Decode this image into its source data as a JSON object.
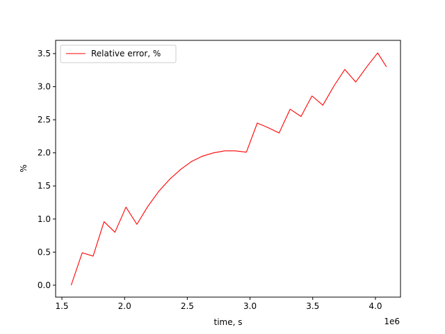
{
  "chart_data": {
    "type": "line",
    "xlabel": "time, s",
    "ylabel": "%",
    "x_offset_label": "1e6",
    "xlim": [
      1.45,
      4.2
    ],
    "ylim": [
      -0.18,
      3.7
    ],
    "xticks": [
      1.5,
      2.0,
      2.5,
      3.0,
      3.5,
      4.0
    ],
    "xtick_labels": [
      "1.5",
      "2.0",
      "2.5",
      "3.0",
      "3.5",
      "4.0"
    ],
    "yticks": [
      0.0,
      0.5,
      1.0,
      1.5,
      2.0,
      2.5,
      3.0,
      3.5
    ],
    "ytick_labels": [
      "0.0",
      "0.5",
      "1.0",
      "1.5",
      "2.0",
      "2.5",
      "3.0",
      "3.5"
    ],
    "grid": false,
    "legend_position": "top-left",
    "series": [
      {
        "name": "Relative error, %",
        "color": "#ff0000",
        "x": [
          1.574,
          1.662,
          1.749,
          1.836,
          1.923,
          2.011,
          2.098,
          2.185,
          2.273,
          2.359,
          2.447,
          2.534,
          2.621,
          2.709,
          2.796,
          2.883,
          2.971,
          3.058,
          3.145,
          3.232,
          3.32,
          3.407,
          3.494,
          3.581,
          3.669,
          3.756,
          3.843,
          3.931,
          4.018,
          4.088
        ],
        "y": [
          0.0,
          0.49,
          0.44,
          0.96,
          0.8,
          1.18,
          0.92,
          1.19,
          1.42,
          1.6,
          1.75,
          1.87,
          1.95,
          2.0,
          2.03,
          2.03,
          2.01,
          2.45,
          2.38,
          2.3,
          2.66,
          2.55,
          2.86,
          2.72,
          3.01,
          3.26,
          3.07,
          3.3,
          3.51,
          3.3
        ]
      }
    ]
  }
}
